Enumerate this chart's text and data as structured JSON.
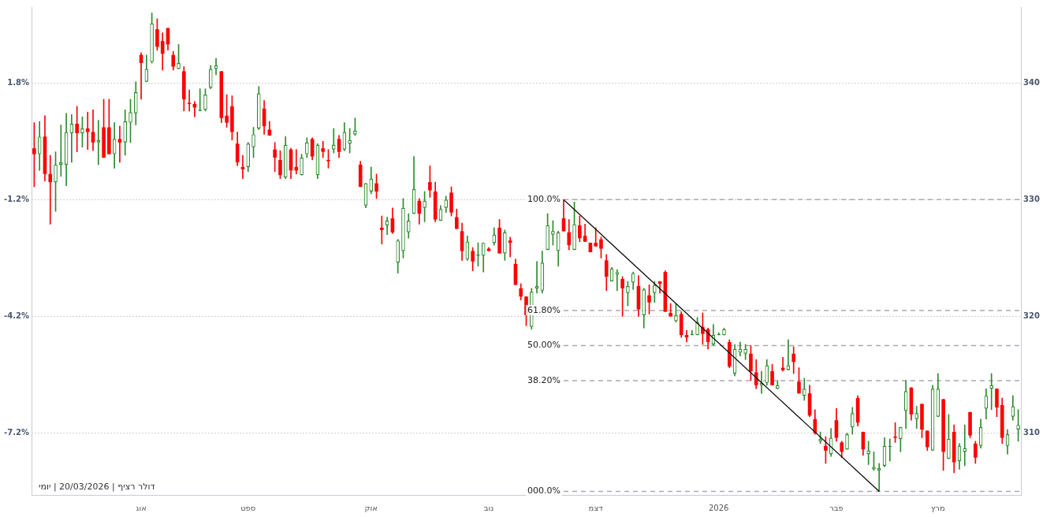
{
  "chart_data": {
    "type": "candlestick",
    "categories": [
      null,
      null,
      null,
      null,
      null,
      null,
      null,
      null,
      null,
      null,
      null,
      null,
      null,
      null,
      null,
      null,
      null,
      null,
      null,
      null,
      "אוג",
      null,
      null,
      null,
      null,
      null,
      null,
      null,
      null,
      null,
      null,
      null,
      null,
      null,
      null,
      null,
      null,
      null,
      null,
      null,
      "ספט",
      null,
      null,
      null,
      null,
      null,
      null,
      null,
      null,
      null,
      null,
      null,
      null,
      null,
      null,
      null,
      null,
      null,
      null,
      null,
      null,
      null,
      null,
      "אוק",
      null,
      null,
      null,
      null,
      null,
      null,
      null,
      null,
      null,
      null,
      null,
      null,
      null,
      null,
      null,
      null,
      null,
      null,
      null,
      null,
      null,
      "נוב",
      null,
      null,
      null,
      null,
      null,
      null,
      null,
      null,
      null,
      null,
      null,
      null,
      null,
      null,
      null,
      null,
      null,
      null,
      null,
      "דצמ",
      null,
      null,
      null,
      null,
      null,
      null,
      null,
      null,
      null,
      null,
      null,
      null,
      null,
      null,
      null,
      null,
      null,
      null,
      null,
      null,
      null,
      null,
      "2026",
      null,
      null,
      null,
      null,
      null,
      null,
      null,
      null,
      null,
      null,
      null,
      null,
      null,
      null,
      null,
      null,
      null,
      null,
      null,
      null,
      null,
      "פבר",
      null,
      null,
      null,
      null,
      null,
      null,
      null,
      null,
      null,
      null,
      null,
      null,
      null,
      null,
      null,
      null,
      null,
      null,
      "מרץ",
      null,
      null,
      null,
      null,
      null,
      null,
      null,
      null,
      null,
      null,
      null,
      null,
      null,
      null,
      null
    ],
    "ohlc": [
      [
        334.4,
        336.6,
        331.1,
        333.9
      ],
      [
        333.9,
        336.7,
        332.5,
        335.4
      ],
      [
        335.4,
        337.2,
        331.6,
        332.2
      ],
      [
        332.2,
        333.8,
        327.9,
        331.5
      ],
      [
        331.5,
        334.1,
        329.0,
        333.0
      ],
      [
        333.0,
        336.4,
        332.0,
        333.2
      ],
      [
        333.0,
        337.4,
        331.2,
        335.8
      ],
      [
        335.7,
        337.3,
        333.2,
        336.5
      ],
      [
        336.5,
        338.0,
        334.1,
        335.7
      ],
      [
        335.7,
        337.1,
        334.5,
        336.1
      ],
      [
        336.1,
        337.5,
        334.3,
        335.8
      ],
      [
        335.8,
        337.7,
        334.2,
        334.9
      ],
      [
        334.9,
        336.8,
        333.0,
        335.1
      ],
      [
        336.2,
        338.6,
        333.6,
        333.6
      ],
      [
        336.2,
        338.6,
        333.9,
        333.9
      ],
      [
        333.9,
        336.6,
        332.7,
        335.2
      ],
      [
        335.2,
        336.3,
        333.2,
        334.9
      ],
      [
        334.9,
        337.7,
        333.8,
        336.7
      ],
      [
        336.6,
        338.6,
        334.9,
        337.5
      ],
      [
        337.4,
        340.1,
        336.4,
        339.2
      ],
      [
        342.4,
        342.6,
        338.6,
        341.7
      ],
      [
        340.1,
        342.4,
        340.1,
        341.2
      ],
      [
        341.8,
        346.0,
        341.7,
        345.1
      ],
      [
        344.6,
        345.5,
        342.8,
        343.1
      ],
      [
        343.6,
        344.3,
        341.1,
        342.5
      ],
      [
        344.7,
        344.7,
        342.8,
        343.3
      ],
      [
        342.4,
        342.7,
        341.1,
        341.4
      ],
      [
        341.2,
        343.3,
        341.2,
        341.7
      ],
      [
        341.0,
        341.4,
        337.6,
        338.6
      ],
      [
        338.3,
        339.4,
        337.6,
        338.2
      ],
      [
        338.2,
        338.4,
        337.1,
        337.9
      ],
      [
        337.6,
        339.5,
        337.6,
        337.7
      ],
      [
        337.7,
        339.5,
        337.6,
        339.0
      ],
      [
        339.6,
        341.5,
        339.5,
        341.2
      ],
      [
        341.2,
        342.1,
        340.7,
        341.5
      ],
      [
        341.0,
        341.0,
        336.6,
        337.0
      ],
      [
        337.2,
        339.0,
        336.2,
        336.6
      ],
      [
        338.0,
        338.9,
        335.1,
        335.8
      ],
      [
        334.8,
        335.8,
        332.9,
        333.2
      ],
      [
        332.8,
        333.8,
        331.8,
        332.6
      ],
      [
        332.8,
        334.9,
        332.4,
        334.8
      ],
      [
        334.5,
        336.2,
        333.6,
        335.6
      ],
      [
        336.1,
        339.7,
        336.0,
        339.1
      ],
      [
        337.8,
        338.5,
        335.6,
        336.3
      ],
      [
        336.0,
        336.7,
        335.5,
        335.5
      ],
      [
        334.3,
        334.9,
        332.4,
        333.6
      ],
      [
        333.4,
        334.2,
        331.8,
        332.1
      ],
      [
        331.9,
        335.4,
        331.8,
        334.7
      ],
      [
        334.3,
        334.4,
        331.8,
        332.5
      ],
      [
        332.8,
        334.3,
        332.2,
        332.5
      ],
      [
        332.1,
        333.9,
        332.1,
        333.6
      ],
      [
        333.9,
        335.3,
        333.6,
        334.9
      ],
      [
        335.2,
        335.3,
        333.4,
        333.7
      ],
      [
        332.1,
        334.8,
        331.8,
        334.7
      ],
      [
        334.4,
        335.0,
        333.6,
        334.1
      ],
      [
        333.4,
        334.3,
        332.7,
        333.3
      ],
      [
        334.3,
        336.1,
        334.0,
        334.7
      ],
      [
        335.2,
        335.5,
        333.6,
        334.1
      ],
      [
        334.3,
        336.6,
        334.2,
        335.8
      ],
      [
        334.8,
        336.1,
        334.0,
        335.1
      ],
      [
        335.6,
        337.0,
        335.5,
        335.9
      ],
      [
        333.0,
        333.3,
        331.1,
        331.1
      ],
      [
        329.5,
        331.4,
        329.3,
        331.4
      ],
      [
        330.7,
        332.8,
        330.5,
        331.8
      ],
      [
        331.4,
        332.2,
        330.1,
        330.7
      ],
      [
        327.6,
        328.6,
        326.2,
        327.4
      ],
      [
        327.8,
        328.5,
        327.0,
        328.2
      ],
      [
        328.4,
        329.3,
        327.1,
        327.2
      ],
      [
        324.6,
        326.6,
        323.7,
        326.5
      ],
      [
        325.6,
        330.1,
        325.0,
        329.3
      ],
      [
        327.2,
        328.8,
        326.7,
        328.2
      ],
      [
        328.8,
        333.7,
        328.8,
        330.9
      ],
      [
        329.9,
        330.1,
        327.9,
        328.8
      ],
      [
        329.3,
        330.7,
        328.1,
        329.9
      ],
      [
        331.5,
        332.9,
        330.2,
        330.8
      ],
      [
        330.7,
        331.5,
        328.1,
        328.3
      ],
      [
        328.2,
        329.5,
        328.2,
        329.2
      ],
      [
        329.3,
        330.3,
        328.9,
        330.0
      ],
      [
        330.6,
        331.1,
        328.6,
        328.9
      ],
      [
        328.5,
        329.2,
        327.5,
        327.5
      ],
      [
        327.3,
        328.0,
        324.8,
        325.6
      ],
      [
        324.9,
        326.9,
        324.8,
        326.4
      ],
      [
        325.6,
        325.9,
        323.9,
        324.7
      ],
      [
        325.2,
        326.3,
        324.3,
        325.3
      ],
      [
        325.2,
        326.3,
        323.8,
        326.3
      ],
      [
        325.8,
        325.9,
        325.6,
        325.6
      ],
      [
        326.3,
        327.6,
        326.1,
        327.0
      ],
      [
        327.6,
        328.3,
        325.4,
        325.4
      ],
      [
        325.4,
        327.4,
        324.8,
        327.2
      ],
      [
        326.5,
        326.8,
        325.1,
        326.3
      ],
      [
        324.5,
        324.9,
        322.7,
        322.7
      ],
      [
        322.4,
        322.8,
        321.4,
        321.7
      ],
      [
        321.7,
        321.7,
        319.2,
        320.1
      ],
      [
        319.1,
        322.4,
        318.9,
        322.1
      ],
      [
        322.4,
        324.7,
        322.0,
        322.6
      ],
      [
        322.2,
        325.6,
        322.0,
        324.6
      ],
      [
        325.7,
        328.8,
        325.7,
        327.8
      ],
      [
        327.0,
        328.2,
        326.1,
        327.3
      ],
      [
        325.6,
        327.3,
        324.3,
        327.2
      ],
      [
        328.4,
        330.0,
        327.3,
        327.3
      ],
      [
        327.2,
        328.3,
        325.7,
        326.1
      ],
      [
        325.7,
        329.8,
        325.7,
        327.9
      ],
      [
        327.8,
        328.6,
        326.4,
        326.7
      ],
      [
        326.9,
        327.9,
        326.4,
        326.4
      ],
      [
        326.3,
        326.3,
        325.5,
        325.5
      ],
      [
        326.3,
        327.6,
        326.0,
        326.0
      ],
      [
        326.6,
        326.8,
        325.0,
        325.8
      ],
      [
        324.8,
        325.3,
        322.2,
        323.4
      ],
      [
        323.0,
        324.2,
        323.0,
        324.1
      ],
      [
        323.6,
        324.0,
        322.2,
        323.8
      ],
      [
        323.2,
        323.4,
        320.0,
        322.4
      ],
      [
        322.0,
        323.0,
        320.9,
        322.6
      ],
      [
        322.9,
        323.8,
        322.3,
        323.7
      ],
      [
        322.6,
        323.5,
        320.0,
        320.6
      ],
      [
        320.1,
        322.4,
        319.0,
        322.3
      ],
      [
        321.8,
        322.7,
        320.2,
        321.2
      ],
      [
        322.0,
        323.0,
        321.2,
        322.7
      ],
      [
        323.0,
        323.0,
        322.0,
        322.8
      ],
      [
        323.8,
        323.9,
        320.4,
        320.4
      ],
      [
        320.3,
        321.1,
        320.0,
        320.0
      ],
      [
        319.6,
        321.1,
        319.5,
        320.1
      ],
      [
        320.2,
        320.4,
        318.2,
        318.4
      ],
      [
        318.4,
        318.8,
        317.8,
        318.2
      ],
      [
        318.4,
        318.8,
        318.4,
        318.5
      ],
      [
        318.4,
        319.9,
        318.4,
        319.5
      ],
      [
        319.1,
        320.3,
        317.6,
        318.5
      ],
      [
        318.9,
        319.0,
        317.2,
        317.8
      ],
      [
        317.6,
        319.3,
        317.5,
        318.4
      ],
      [
        318.4,
        318.6,
        318.4,
        318.5
      ],
      [
        318.4,
        319.0,
        318.4,
        318.9
      ],
      [
        317.8,
        318.0,
        315.6,
        315.7
      ],
      [
        315.1,
        317.6,
        314.9,
        317.2
      ],
      [
        316.9,
        317.8,
        316.6,
        317.2
      ],
      [
        316.8,
        317.6,
        316.3,
        317.2
      ],
      [
        316.8,
        317.5,
        314.5,
        315.3
      ],
      [
        315.2,
        316.3,
        313.8,
        314.1
      ],
      [
        314.1,
        315.3,
        313.4,
        314.3
      ],
      [
        314.3,
        316.3,
        314.1,
        315.8
      ],
      [
        315.3,
        315.9,
        314.1,
        314.1
      ],
      [
        313.8,
        314.5,
        313.8,
        314.1
      ],
      [
        315.6,
        316.5,
        315.3,
        315.4
      ],
      [
        315.4,
        318.0,
        315.4,
        315.8
      ],
      [
        316.8,
        317.4,
        315.1,
        316.1
      ],
      [
        314.4,
        315.6,
        313.4,
        313.4
      ],
      [
        313.2,
        314.7,
        312.8,
        313.8
      ],
      [
        313.4,
        314.1,
        311.4,
        311.5
      ],
      [
        311.2,
        312.0,
        309.9,
        310.0
      ],
      [
        309.3,
        310.1,
        309.1,
        309.5
      ],
      [
        308.9,
        309.7,
        307.4,
        308.5
      ],
      [
        308.2,
        310.4,
        308.0,
        309.6
      ],
      [
        311.1,
        312.1,
        309.3,
        309.6
      ],
      [
        309.2,
        309.3,
        307.9,
        308.4
      ],
      [
        308.6,
        310.0,
        308.6,
        309.9
      ],
      [
        310.5,
        312.2,
        309.9,
        311.7
      ],
      [
        313.0,
        313.2,
        310.6,
        310.9
      ],
      [
        310.1,
        310.1,
        308.1,
        308.6
      ],
      [
        308.2,
        309.3,
        307.3,
        308.5
      ],
      [
        306.9,
        308.4,
        306.8,
        307.1
      ],
      [
        306.8,
        307.4,
        305.0,
        307.0
      ],
      [
        307.2,
        309.6,
        307.1,
        308.9
      ],
      [
        308.8,
        309.5,
        307.6,
        308.9
      ],
      [
        309.7,
        310.9,
        309.2,
        309.6
      ],
      [
        309.5,
        310.5,
        308.4,
        310.5
      ],
      [
        311.9,
        314.5,
        310.4,
        313.6
      ],
      [
        313.9,
        313.9,
        311.1,
        311.6
      ],
      [
        311.2,
        312.3,
        310.4,
        311.7
      ],
      [
        312.5,
        312.5,
        309.6,
        310.3
      ],
      [
        310.2,
        310.2,
        308.5,
        308.8
      ],
      [
        308.5,
        314.1,
        308.5,
        313.8
      ],
      [
        311.4,
        315.1,
        311.4,
        313.8
      ],
      [
        312.9,
        312.9,
        306.8,
        308.4
      ],
      [
        307.8,
        311.6,
        307.8,
        309.5
      ],
      [
        310.1,
        310.7,
        306.6,
        307.5
      ],
      [
        307.6,
        309.1,
        306.9,
        308.9
      ],
      [
        308.4,
        310.7,
        307.2,
        308.7
      ],
      [
        311.8,
        311.8,
        309.6,
        309.8
      ],
      [
        309.1,
        309.3,
        307.4,
        307.9
      ],
      [
        308.9,
        311.2,
        308.7,
        310.5
      ],
      [
        312.1,
        313.8,
        311.2,
        313.2
      ],
      [
        313.8,
        315.1,
        312.0,
        314.1
      ],
      [
        313.8,
        313.8,
        311.4,
        312.2
      ],
      [
        312.4,
        313.0,
        309.1,
        309.6
      ],
      [
        308.9,
        310.3,
        308.2,
        309.9
      ],
      [
        311.4,
        313.2,
        311.1,
        312.3
      ],
      [
        310.3,
        312.0,
        309.3,
        310.7
      ]
    ],
    "colors": [
      "#ff0000",
      "#2e8b2e",
      "#ff0000",
      "#ff0000",
      "#2e8b2e",
      "#2e8b2e",
      "#2e8b2e",
      "#2e8b2e",
      "#ff0000",
      "#2e8b2e",
      "#ff0000",
      "#ff0000",
      "#2e8b2e",
      "#ff0000",
      "#ff0000",
      "#2e8b2e",
      "#ff0000",
      "#2e8b2e",
      "#2e8b2e",
      "#2e8b2e",
      "#ff0000",
      "#2e8b2e",
      "#2e8b2e",
      "#ff0000",
      "#ff0000",
      "#ff0000",
      "#ff0000",
      "#2e8b2e",
      "#ff0000",
      "#ff0000",
      "#ff0000",
      "#2e8b2e",
      "#2e8b2e",
      "#2e8b2e",
      "#2e8b2e",
      "#ff0000",
      "#ff0000",
      "#ff0000",
      "#ff0000",
      "#ff0000",
      "#2e8b2e",
      "#2e8b2e",
      "#2e8b2e",
      "#ff0000",
      "#ff0000",
      "#ff0000",
      "#ff0000",
      "#2e8b2e",
      "#ff0000",
      "#ff0000",
      "#2e8b2e",
      "#2e8b2e",
      "#ff0000",
      "#2e8b2e",
      "#ff0000",
      "#ff0000",
      "#2e8b2e",
      "#ff0000",
      "#2e8b2e",
      "#2e8b2e",
      "#2e8b2e",
      "#ff0000",
      "#2e8b2e",
      "#2e8b2e",
      "#ff0000",
      "#ff0000",
      "#2e8b2e",
      "#ff0000",
      "#2e8b2e",
      "#2e8b2e",
      "#2e8b2e",
      "#2e8b2e",
      "#ff0000",
      "#2e8b2e",
      "#ff0000",
      "#ff0000",
      "#2e8b2e",
      "#2e8b2e",
      "#ff0000",
      "#ff0000",
      "#ff0000",
      "#2e8b2e",
      "#ff0000",
      "#2e8b2e",
      "#2e8b2e",
      "#ff0000",
      "#2e8b2e",
      "#ff0000",
      "#2e8b2e",
      "#ff0000",
      "#ff0000",
      "#ff0000",
      "#ff0000",
      "#2e8b2e",
      "#2e8b2e",
      "#2e8b2e",
      "#2e8b2e",
      "#2e8b2e",
      "#2e8b2e",
      "#ff0000",
      "#ff0000",
      "#2e8b2e",
      "#ff0000",
      "#ff0000",
      "#ff0000",
      "#ff0000",
      "#ff0000",
      "#ff0000",
      "#2e8b2e",
      "#2e8b2e",
      "#ff0000",
      "#2e8b2e",
      "#2e8b2e",
      "#ff0000",
      "#2e8b2e",
      "#ff0000",
      "#2e8b2e",
      "#ff0000",
      "#ff0000",
      "#ff0000",
      "#2e8b2e",
      "#ff0000",
      "#ff0000",
      "#2e8b2e",
      "#2e8b2e",
      "#ff0000",
      "#ff0000",
      "#2e8b2e",
      "#2e8b2e",
      "#2e8b2e",
      "#ff0000",
      "#2e8b2e",
      "#2e8b2e",
      "#2e8b2e",
      "#ff0000",
      "#ff0000",
      "#2e8b2e",
      "#2e8b2e",
      "#ff0000",
      "#2e8b2e",
      "#ff0000",
      "#2e8b2e",
      "#ff0000",
      "#ff0000",
      "#2e8b2e",
      "#ff0000",
      "#ff0000",
      "#2e8b2e",
      "#ff0000",
      "#2e8b2e",
      "#ff0000",
      "#ff0000",
      "#2e8b2e",
      "#2e8b2e",
      "#ff0000",
      "#ff0000",
      "#2e8b2e",
      "#2e8b2e",
      "#2e8b2e",
      "#2e8b2e",
      "#2e8b2e",
      "#ff0000",
      "#2e8b2e",
      "#2e8b2e",
      "#ff0000",
      "#2e8b2e",
      "#ff0000",
      "#ff0000",
      "#2e8b2e",
      "#2e8b2e",
      "#ff0000",
      "#2e8b2e",
      "#ff0000",
      "#2e8b2e",
      "#2e8b2e",
      "#ff0000",
      "#ff0000",
      "#2e8b2e",
      "#2e8b2e",
      "#2e8b2e",
      "#ff0000",
      "#ff0000",
      "#2e8b2e",
      "#2e8b2e",
      "#2e8b2e"
    ],
    "series": [
      {
        "type": "line",
        "color": "#000000",
        "values": [
          null,
          null,
          null,
          null,
          null,
          null,
          null,
          null,
          null,
          null,
          null,
          null,
          null,
          null,
          null,
          null,
          null,
          null,
          null,
          null,
          null,
          null,
          null,
          null,
          null,
          null,
          null,
          null,
          null,
          null,
          null,
          null,
          null,
          null,
          null,
          null,
          null,
          null,
          null,
          null,
          null,
          null,
          null,
          null,
          null,
          null,
          null,
          null,
          null,
          null,
          null,
          null,
          null,
          null,
          null,
          null,
          null,
          null,
          null,
          null,
          null,
          null,
          null,
          null,
          null,
          null,
          null,
          null,
          null,
          null,
          null,
          null,
          null,
          null,
          null,
          null,
          null,
          null,
          null,
          null,
          null,
          null,
          null,
          null,
          null,
          null,
          null,
          null,
          null,
          null,
          null,
          null,
          null,
          null,
          null,
          null,
          null,
          null,
          null,
          330.0,
          null,
          null,
          null,
          null,
          null,
          null,
          null,
          null,
          null,
          null,
          null,
          null,
          null,
          null,
          null,
          null,
          null,
          null,
          null,
          null,
          null,
          null,
          null,
          null,
          null,
          null,
          null,
          null,
          null,
          null,
          null,
          null,
          null,
          null,
          null,
          null,
          null,
          null,
          null,
          null,
          null,
          null,
          null,
          null,
          null,
          null,
          null,
          null,
          null,
          null,
          null,
          null,
          null,
          null,
          null,
          null,
          null,
          null,
          305.0,
          null,
          null,
          null,
          null,
          null,
          null,
          null,
          null,
          null,
          null,
          null,
          null,
          null,
          null,
          null,
          null,
          null,
          null,
          null,
          null,
          null,
          null,
          null,
          null,
          null,
          null
        ]
      }
    ],
    "ylim": [
      304.7,
      346.5
    ],
    "yticks": [
      310,
      320,
      330,
      340
    ],
    "y2lim": [
      -8.79,
      3.75
    ],
    "y2ticks": [
      {
        "value": -7.2,
        "label": "-7.2%"
      },
      {
        "value": -4.2,
        "label": "-4.2%"
      },
      {
        "value": -1.2,
        "label": "-1.2%"
      },
      {
        "value": 1.8,
        "label": "1.8%"
      }
    ],
    "grid": "y",
    "ref_lines": [
      {
        "axis": "y",
        "value": 330.0,
        "color": "#aaaaaa",
        "line_style": "dashed"
      },
      {
        "axis": "y",
        "value": 320.5,
        "color": "#aaaaaa",
        "line_style": "dashed"
      },
      {
        "axis": "y",
        "value": 317.5,
        "color": "#aaaaaa",
        "line_style": "dashed"
      },
      {
        "axis": "y",
        "value": 314.5,
        "color": "#aaaaaa",
        "line_style": "dashed"
      },
      {
        "axis": "y",
        "value": 305.0,
        "color": "#aaaaaa",
        "line_style": "dashed"
      }
    ],
    "annotations": [
      "100.0%",
      "61.80%",
      "50.00%",
      "38.20%",
      "000.0%",
      "דולר רציף | 20/03/2026 | יומי"
    ]
  }
}
